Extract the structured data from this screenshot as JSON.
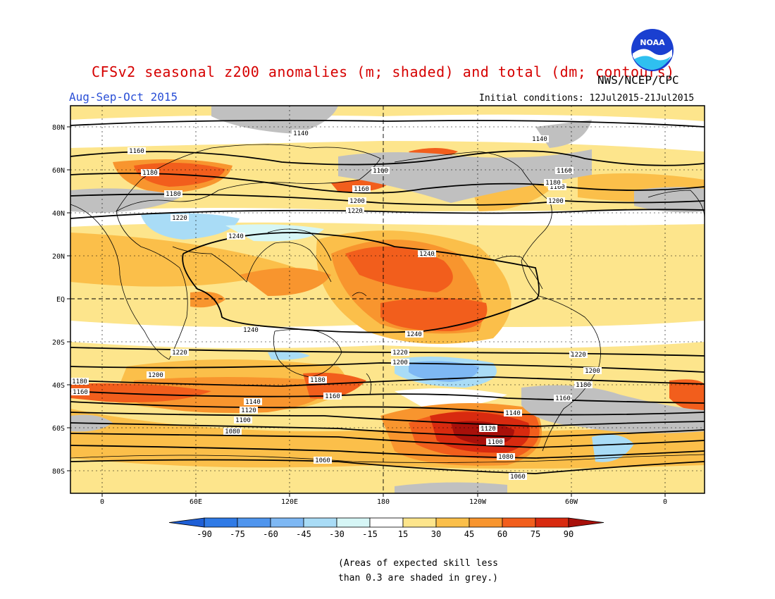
{
  "header": {
    "title": "CFSv2 seasonal z200 anomalies (m; shaded) and total (dm; contours)",
    "agency": "NWS/NCEP/CPC",
    "season": "Aug-Sep-Oct 2015",
    "initial_conditions": "Initial conditions: 12Jul2015-21Jul2015",
    "logo_text": "NOAA"
  },
  "axes": {
    "lat_labels": [
      "80N",
      "60N",
      "40N",
      "20N",
      "EQ",
      "20S",
      "40S",
      "60S",
      "80S"
    ],
    "lon_labels": [
      "0",
      "60E",
      "120E",
      "180",
      "120W",
      "60W",
      "0"
    ]
  },
  "colorbar": {
    "labels": [
      "-90",
      "-75",
      "-60",
      "-45",
      "-30",
      "-15",
      "15",
      "30",
      "45",
      "60",
      "75",
      "90"
    ],
    "colors": [
      "#1e5fd6",
      "#2f7ae6",
      "#4f95ee",
      "#7eb8f4",
      "#a9dcf6",
      "#d6f6f6",
      "#ffffff",
      "#fde58c",
      "#fbbf4a",
      "#f8952e",
      "#f25e1c",
      "#d82a0f",
      "#a8100a"
    ]
  },
  "contours": {
    "labels": [
      "1140",
      "1140",
      "1160",
      "1160",
      "1160",
      "1160",
      "1180",
      "1160",
      "1180",
      "1200",
      "1200",
      "1220",
      "1220",
      "1240",
      "1240",
      "1240",
      "1240",
      "1220",
      "1220",
      "1220",
      "1200",
      "1200",
      "1200",
      "1180",
      "1180",
      "1180",
      "1160",
      "1160",
      "1160",
      "1140",
      "1140",
      "1120",
      "1120",
      "1100",
      "1100",
      "1080",
      "1080",
      "1060",
      "1060",
      "1180"
    ]
  },
  "note": {
    "line1": "(Areas of expected skill less",
    "line2": "than 0.3 are shaded in grey.)"
  }
}
